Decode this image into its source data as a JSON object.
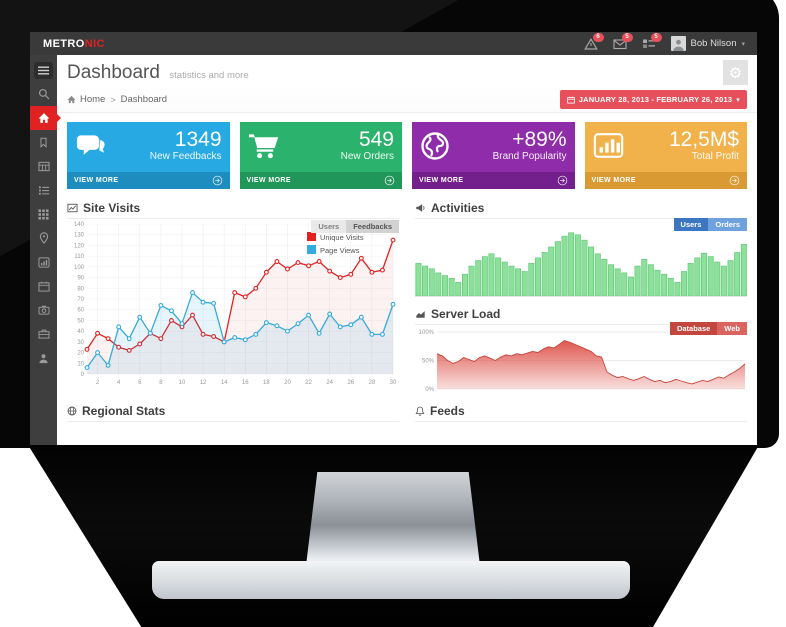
{
  "topbar": {
    "logo_primary": "METRO",
    "logo_accent": "NIC",
    "user_name": "Bob Nilson",
    "notifications": [
      {
        "icon": "warning-icon",
        "count": "6"
      },
      {
        "icon": "envelope-icon",
        "count": "5"
      },
      {
        "icon": "tasks-icon",
        "count": "5"
      }
    ]
  },
  "sidebar": {
    "icons": [
      "menu-toggle",
      "search",
      "home",
      "bookmark",
      "table",
      "list",
      "grid",
      "location",
      "chart",
      "calendar",
      "camera",
      "briefcase",
      "user"
    ],
    "active": "home",
    "active_color": "#e02222"
  },
  "page": {
    "title": "Dashboard",
    "subtitle": "statistics and more",
    "breadcrumb": {
      "home": "Home",
      "separator": ">",
      "current": "Dashboard"
    },
    "date_range": "JANUARY 28, 2013 - FEBRUARY 26, 2013",
    "date_button_color": "#e7505a"
  },
  "tiles": [
    {
      "value": "1349",
      "label": "New Feedbacks",
      "cta": "VIEW MORE",
      "icon": "comments-icon",
      "color": "#27a9e3",
      "footer_color": "#1d8dbf"
    },
    {
      "value": "549",
      "label": "New Orders",
      "cta": "VIEW MORE",
      "icon": "cart-icon",
      "color": "#2bb36d",
      "footer_color": "#21965a"
    },
    {
      "value": "+89%",
      "label": "Brand Popularity",
      "cta": "VIEW MORE",
      "icon": "globe-icon",
      "color": "#8e2caa",
      "footer_color": "#74208c"
    },
    {
      "value": "12,5M$",
      "label": "Total Profit",
      "cta": "VIEW MORE",
      "icon": "bar-chart-icon",
      "color": "#f1b24c",
      "footer_color": "#da9a33"
    }
  ],
  "panels": {
    "site_visits": {
      "title": "Site Visits",
      "btn_users": "Users",
      "btn_feedbacks": "Feedbacks",
      "active_button": "Feedbacks"
    },
    "activities": {
      "title": "Activities",
      "btn_users": "Users",
      "btn_orders": "Orders",
      "active_button": "Users"
    },
    "server_load": {
      "title": "Server Load",
      "btn_database": "Database",
      "btn_web": "Web",
      "active_button": "Database"
    },
    "regional_stats": {
      "title": "Regional Stats"
    },
    "feeds": {
      "title": "Feeds"
    }
  },
  "chart_data": [
    {
      "id": "visits",
      "type": "line",
      "title": "Site Visits",
      "x_range": [
        1,
        30
      ],
      "x_tick_step": 2,
      "ylim": [
        0,
        140
      ],
      "y_tick_step": 10,
      "grid": true,
      "legend_position": "top-right",
      "series": [
        {
          "name": "Unique Visits",
          "color": "#e02222",
          "values": [
            23,
            38,
            33,
            25,
            22,
            28,
            38,
            33,
            50,
            44,
            55,
            37,
            35,
            30,
            76,
            72,
            80,
            95,
            105,
            98,
            104,
            101,
            105,
            96,
            90,
            93,
            108,
            95,
            97,
            125
          ]
        },
        {
          "name": "Page Views",
          "color": "#35aadc",
          "values": [
            6,
            20,
            8,
            44,
            33,
            53,
            38,
            64,
            59,
            47,
            76,
            67,
            66,
            30,
            34,
            32,
            37,
            48,
            45,
            40,
            47,
            55,
            38,
            56,
            44,
            46,
            53,
            37,
            37,
            65
          ]
        }
      ]
    },
    {
      "id": "activities",
      "type": "bar",
      "title": "Activities",
      "color": "#8ce09a",
      "border_color": "#66c87e",
      "ylim": [
        0,
        100
      ],
      "values": [
        48,
        44,
        40,
        34,
        30,
        26,
        20,
        32,
        44,
        52,
        58,
        62,
        56,
        50,
        44,
        40,
        36,
        48,
        56,
        64,
        72,
        80,
        88,
        93,
        90,
        82,
        72,
        62,
        54,
        46,
        40,
        34,
        28,
        44,
        54,
        46,
        38,
        32,
        26,
        20,
        36,
        48,
        56,
        63,
        58,
        50,
        44,
        52,
        64,
        76
      ]
    },
    {
      "id": "server",
      "type": "area",
      "title": "Server Load",
      "color": "#dd4f46",
      "line_color": "#c6453c",
      "ylim": [
        0,
        100
      ],
      "y_ticks": [
        100,
        50,
        0
      ],
      "y_tick_labels": [
        "100%",
        "50%",
        "0%"
      ],
      "values": [
        62,
        58,
        50,
        45,
        48,
        55,
        52,
        48,
        55,
        58,
        54,
        50,
        56,
        60,
        58,
        62,
        60,
        63,
        66,
        64,
        70,
        74,
        72,
        78,
        85,
        82,
        78,
        74,
        70,
        66,
        58,
        56,
        30,
        24,
        20,
        22,
        18,
        15,
        18,
        22,
        17,
        13,
        15,
        11,
        13,
        17,
        14,
        11,
        9,
        12,
        15,
        13,
        17,
        21,
        19,
        25,
        30,
        36,
        44
      ]
    }
  ]
}
